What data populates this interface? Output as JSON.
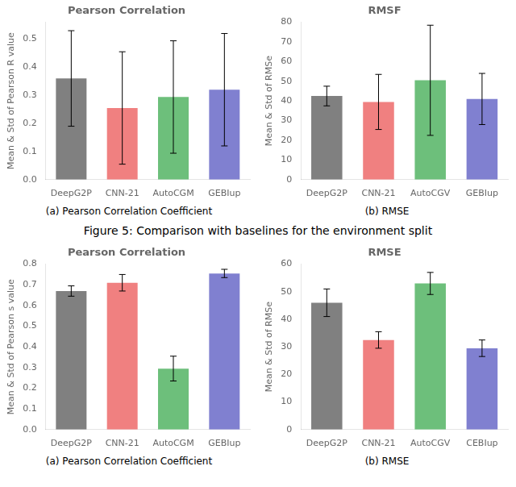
{
  "title": "Figure 5: Comparison with baselines for the environment split",
  "chart_data": [
    {
      "type": "bar",
      "title": "Pearson Correlation",
      "ylabel": "Mean & Std of Pearson R value",
      "categories": [
        "DeepG2P",
        "CNN-21",
        "AutoCGM",
        "GEBIup"
      ],
      "values": [
        0.36,
        0.255,
        0.294,
        0.32
      ],
      "errors": [
        0.17,
        0.2,
        0.2,
        0.2
      ],
      "colors": [
        "#808080",
        "#f08080",
        "#6dbf7b",
        "#8080d0"
      ],
      "ylim": [
        0.0,
        0.56
      ],
      "yticks": [
        {
          "value": 0.0,
          "label": "0.0"
        },
        0.1,
        0.2,
        0.3,
        0.4,
        0.5
      ],
      "grid": false,
      "annotations": [
        "(a) Pearson Correlation Coefficient"
      ]
    },
    {
      "type": "bar",
      "title": "RMSF",
      "ylabel": "Mean & Std of RMSe",
      "categories": [
        "DeepG2P",
        "CNN-21",
        "AutoCGV",
        "GEBIup"
      ],
      "values": [
        42.5,
        39.5,
        50.5,
        41.0
      ],
      "errors": [
        5.0,
        14.0,
        28.0,
        13.0
      ],
      "colors": [
        "#808080",
        "#f08080",
        "#6dbf7b",
        "#8080d0"
      ],
      "ylim": [
        0,
        80
      ],
      "yticks": [
        0,
        10,
        20,
        30,
        40,
        50,
        60,
        70,
        80
      ],
      "grid": false,
      "annotations": [
        "(b) RMSE"
      ]
    },
    {
      "type": "bar",
      "title": "Pearson Correlation",
      "ylabel": "Mean & Std of Pearson s value",
      "categories": [
        "DeepG2P",
        "CNN-21",
        "AutoCGM",
        "GEBIup"
      ],
      "values": [
        0.67,
        0.71,
        0.295,
        0.755
      ],
      "errors": [
        0.025,
        0.04,
        0.06,
        0.02
      ],
      "colors": [
        "#808080",
        "#f08080",
        "#6dbf7b",
        "#8080d0"
      ],
      "ylim": [
        0.0,
        0.8
      ],
      "yticks": [
        {
          "value": 0.0,
          "label": "0.0"
        },
        0.1,
        0.2,
        0.3,
        0.4,
        0.5,
        0.6,
        0.7,
        0.8
      ],
      "grid": false,
      "annotations": [
        "(a) Pearson Correlation Coefficient"
      ]
    },
    {
      "type": "bar",
      "title": "RMSE",
      "ylabel": "Mean & Std of RMSe",
      "categories": [
        "DeepG2P",
        "CNN-21",
        "AutoCGV",
        "CEBIup"
      ],
      "values": [
        46.0,
        32.5,
        53.0,
        29.5
      ],
      "errors": [
        5.0,
        3.0,
        4.0,
        3.0
      ],
      "colors": [
        "#808080",
        "#f08080",
        "#6dbf7b",
        "#8080d0"
      ],
      "ylim": [
        0,
        60
      ],
      "yticks": [
        0,
        10,
        20,
        30,
        40,
        50,
        60
      ],
      "grid": false,
      "annotations": [
        "(b) RMSE"
      ]
    }
  ]
}
